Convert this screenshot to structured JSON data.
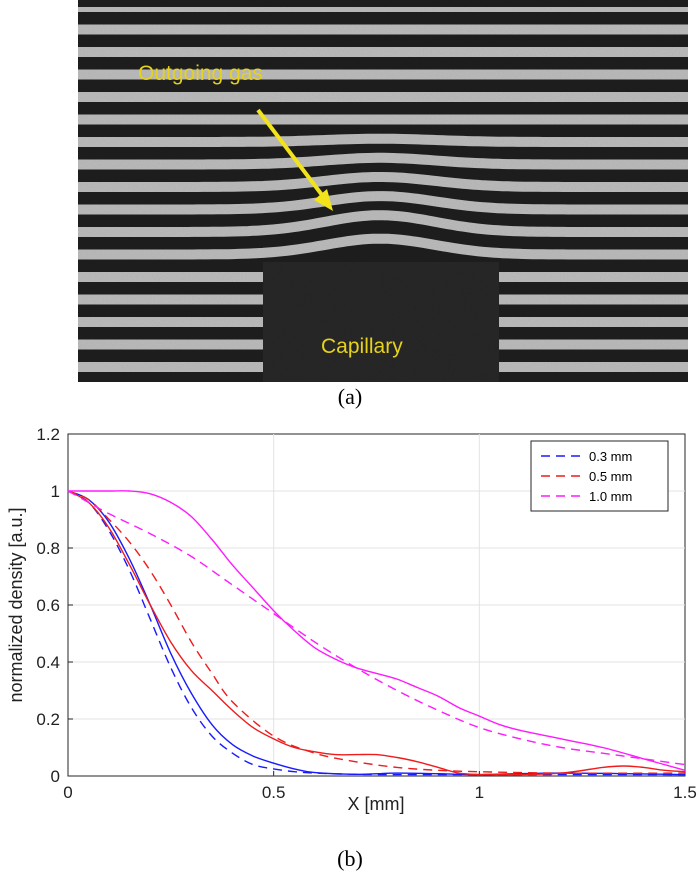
{
  "panel_a": {
    "caption": "(a)",
    "label_gas": "Outgoing gas",
    "label_capillary": "Capillary",
    "annotation_color": "#e6d21c",
    "arrow_color": "#f2e31a"
  },
  "panel_b": {
    "caption": "(b)"
  },
  "chart_data": {
    "type": "line",
    "xlabel": "X [mm]",
    "ylabel": "normalized density [a.u.]",
    "xlim": [
      0,
      1.5
    ],
    "ylim": [
      0,
      1.2
    ],
    "xticks": [
      0,
      0.5,
      1,
      1.5
    ],
    "xtick_labels": [
      "0",
      "0.5",
      "1",
      "1.5"
    ],
    "yticks": [
      0,
      0.2,
      0.4,
      0.6,
      0.8,
      1,
      1.2
    ],
    "ytick_labels": [
      "0",
      "0.2",
      "0.4",
      "0.6",
      "0.8",
      "1",
      "1.2"
    ],
    "grid": true,
    "legend_position": "top-right",
    "series": [
      {
        "name": "0.3 mm",
        "style": "dashed",
        "color": "#1a1aff",
        "legend": true,
        "x": [
          0,
          0.05,
          0.1,
          0.15,
          0.2,
          0.25,
          0.3,
          0.35,
          0.4,
          0.45,
          0.5,
          0.55,
          0.6,
          0.7,
          0.8,
          1.0,
          1.2,
          1.5
        ],
        "y": [
          1.0,
          0.96,
          0.86,
          0.72,
          0.55,
          0.38,
          0.24,
          0.14,
          0.08,
          0.04,
          0.025,
          0.015,
          0.01,
          0.006,
          0.005,
          0.005,
          0.005,
          0.005
        ]
      },
      {
        "name": "0.3 mm",
        "style": "solid",
        "color": "#1a1aff",
        "legend": false,
        "x": [
          0,
          0.05,
          0.1,
          0.15,
          0.2,
          0.25,
          0.3,
          0.35,
          0.4,
          0.45,
          0.5,
          0.55,
          0.6,
          0.7,
          0.8,
          0.9,
          1.0,
          1.2,
          1.5
        ],
        "y": [
          1.0,
          0.97,
          0.89,
          0.76,
          0.6,
          0.43,
          0.29,
          0.18,
          0.11,
          0.07,
          0.045,
          0.025,
          0.012,
          0.006,
          0.01,
          0.008,
          0.005,
          0.01,
          0.005
        ]
      },
      {
        "name": "0.5 mm",
        "style": "dashed",
        "color": "#ee1c1c",
        "legend": true,
        "x": [
          0,
          0.05,
          0.1,
          0.15,
          0.2,
          0.25,
          0.3,
          0.35,
          0.4,
          0.5,
          0.6,
          0.7,
          0.8,
          0.9,
          1.0,
          1.2,
          1.5
        ],
        "y": [
          1.0,
          0.97,
          0.9,
          0.82,
          0.72,
          0.6,
          0.47,
          0.36,
          0.26,
          0.14,
          0.08,
          0.05,
          0.03,
          0.02,
          0.015,
          0.01,
          0.01
        ]
      },
      {
        "name": "0.5 mm",
        "style": "solid",
        "color": "#ee1c1c",
        "legend": false,
        "x": [
          0,
          0.05,
          0.1,
          0.15,
          0.2,
          0.25,
          0.3,
          0.35,
          0.4,
          0.45,
          0.5,
          0.55,
          0.6,
          0.65,
          0.7,
          0.75,
          0.8,
          0.85,
          0.9,
          0.95,
          1.0,
          1.05,
          1.1,
          1.2,
          1.3,
          1.35,
          1.4,
          1.45,
          1.5
        ],
        "y": [
          1.0,
          0.96,
          0.87,
          0.74,
          0.6,
          0.47,
          0.37,
          0.3,
          0.23,
          0.17,
          0.13,
          0.1,
          0.085,
          0.075,
          0.075,
          0.075,
          0.065,
          0.05,
          0.03,
          0.01,
          0.005,
          0.005,
          0.005,
          0.01,
          0.03,
          0.035,
          0.03,
          0.02,
          0.015
        ]
      },
      {
        "name": "1.0 mm",
        "style": "dashed",
        "color": "#ff1aff",
        "legend": true,
        "x": [
          0,
          0.05,
          0.1,
          0.2,
          0.3,
          0.4,
          0.5,
          0.6,
          0.7,
          0.8,
          0.9,
          1.0,
          1.1,
          1.2,
          1.3,
          1.4,
          1.5
        ],
        "y": [
          1.0,
          0.96,
          0.92,
          0.85,
          0.77,
          0.67,
          0.57,
          0.47,
          0.38,
          0.3,
          0.23,
          0.17,
          0.13,
          0.1,
          0.08,
          0.06,
          0.04
        ]
      },
      {
        "name": "1.0 mm",
        "style": "solid",
        "color": "#ff1aff",
        "legend": false,
        "x": [
          0,
          0.05,
          0.1,
          0.15,
          0.2,
          0.25,
          0.3,
          0.35,
          0.4,
          0.45,
          0.5,
          0.55,
          0.6,
          0.65,
          0.7,
          0.75,
          0.8,
          0.85,
          0.9,
          0.95,
          1.0,
          1.05,
          1.1,
          1.2,
          1.3,
          1.4,
          1.5
        ],
        "y": [
          1.0,
          1.0,
          1.0,
          1.0,
          0.99,
          0.96,
          0.91,
          0.83,
          0.74,
          0.66,
          0.58,
          0.51,
          0.45,
          0.41,
          0.38,
          0.36,
          0.34,
          0.31,
          0.28,
          0.24,
          0.21,
          0.18,
          0.16,
          0.13,
          0.1,
          0.06,
          0.02
        ]
      }
    ]
  }
}
